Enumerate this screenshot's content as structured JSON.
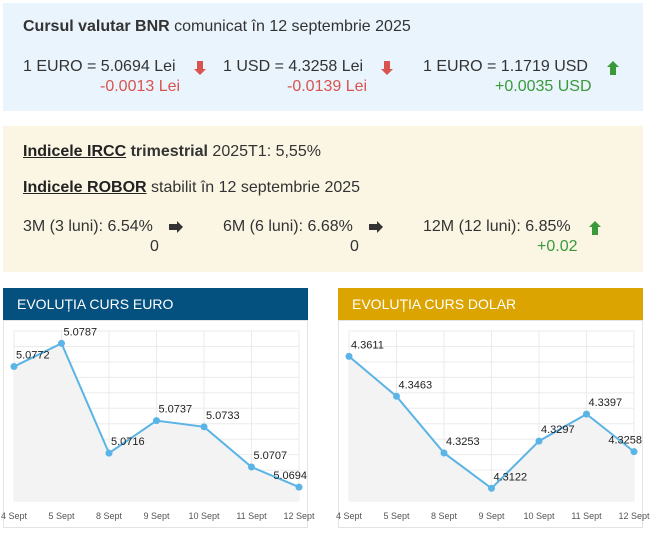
{
  "bnr": {
    "title_bold": "Cursul valutar BNR",
    "title_rest": "comunicat în 12 septembrie 2025",
    "rates": [
      {
        "label": "1 EURO = 5.0694 Lei",
        "change": "-0.0013 Lei",
        "direction": "down"
      },
      {
        "label": "1 USD = 4.3258 Lei",
        "change": "-0.0139 Lei",
        "direction": "down"
      },
      {
        "label": "1 EURO = 1.1719 USD",
        "change": "+0.0035 USD",
        "direction": "up"
      }
    ]
  },
  "indices": {
    "ircc_link": "Indicele IRCC",
    "ircc_bold": "trimestrial",
    "ircc_value": "2025T1: 5,55%",
    "robor_link": "Indicele ROBOR",
    "robor_rest": "stabilit în 12 septembrie 2025",
    "robor": [
      {
        "label": "3M (3 luni): 6.54%",
        "change": "0",
        "direction": "flat"
      },
      {
        "label": "6M (6 luni): 6.68%",
        "change": "0",
        "direction": "flat"
      },
      {
        "label": "12M (12 luni): 6.85%",
        "change": "+0.02",
        "direction": "up"
      }
    ]
  },
  "colors": {
    "down": "#d9534f",
    "up": "#3a9a3a",
    "flat": "#333333",
    "euro_header": "#04507f",
    "dolar_header": "#dba400",
    "line": "#5ab4e5"
  },
  "chart_data": [
    {
      "type": "line",
      "title": "EVOLUȚIA CURS EURO",
      "categories": [
        "4 Sept",
        "5 Sept",
        "8 Sept",
        "9 Sept",
        "10 Sept",
        "11 Sept",
        "12 Sept"
      ],
      "values": [
        5.0772,
        5.0787,
        5.0716,
        5.0737,
        5.0733,
        5.0707,
        5.0694
      ],
      "labels": [
        "5.0772",
        "5.0787",
        "5.0716",
        "5.0737",
        "5.0733",
        "5.0707",
        "5.0694"
      ],
      "ylim": [
        5.0685,
        5.0795
      ],
      "grid": true
    },
    {
      "type": "line",
      "title": "EVOLUȚIA CURS DOLAR",
      "categories": [
        "4 Sept",
        "5 Sept",
        "8 Sept",
        "9 Sept",
        "10 Sept",
        "11 Sept",
        "12 Sept"
      ],
      "values": [
        4.3611,
        4.3463,
        4.3253,
        4.3122,
        4.3297,
        4.3397,
        4.3258
      ],
      "labels": [
        "4.3611",
        "4.3463",
        "4.3253",
        "4.3122",
        "4.3297",
        "4.3397",
        "4.3258"
      ],
      "ylim": [
        4.3075,
        4.3705
      ],
      "grid": true
    }
  ]
}
